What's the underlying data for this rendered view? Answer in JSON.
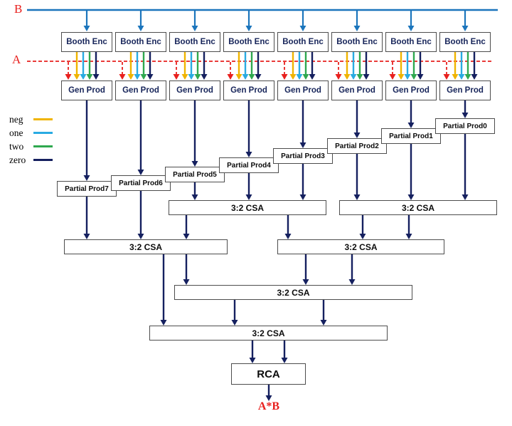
{
  "labels": {
    "input_b": "B",
    "input_a": "A",
    "booth_enc": "Booth Enc",
    "gen_prod": "Gen Prod",
    "csa": "3:2 CSA",
    "rca": "RCA",
    "output": "A*B"
  },
  "partial_products": [
    "Partial Prod7",
    "Partial Prod6",
    "Partial Prod5",
    "Partial Prod4",
    "Partial Prod3",
    "Partial Prod2",
    "Partial Prod1",
    "Partial Prod0"
  ],
  "legend": [
    {
      "label": "neg",
      "color": "#f0b400"
    },
    {
      "label": "one",
      "color": "#29abe2"
    },
    {
      "label": "two",
      "color": "#2fa84f"
    },
    {
      "label": "zero",
      "color": "#15205f"
    }
  ],
  "colors": {
    "b_line": "#1b75bc",
    "a_line": "#e8201e",
    "neg": "#f0b400",
    "one": "#29abe2",
    "two": "#2fa84f",
    "zero": "#15205f",
    "arrow": "#15205f"
  }
}
